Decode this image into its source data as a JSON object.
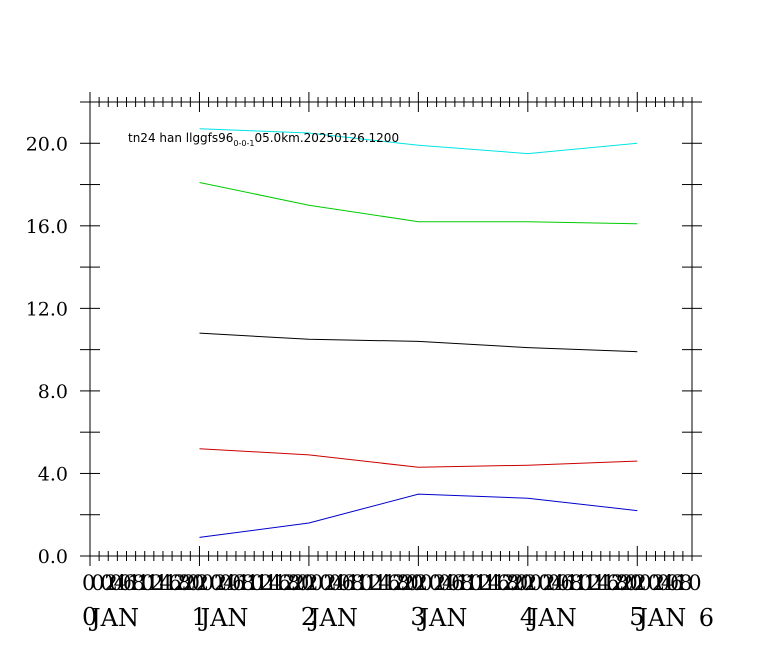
{
  "chart_data": {
    "type": "line",
    "title": "",
    "xlabel": "",
    "ylabel": "",
    "annotation": {
      "prefix": "tn24 han llggfs96",
      "subscript": "0-0-1",
      "suffix": "05.0km.20250126.1200"
    },
    "x": [
      1,
      2,
      3,
      4,
      5
    ],
    "xlim": [
      0,
      5.5
    ],
    "ylim": [
      0,
      22
    ],
    "yticks": [
      0,
      4,
      8,
      12,
      16,
      20
    ],
    "ytick_labels": [
      "0.0",
      "4.0",
      "8.0",
      "12.0",
      "16.0",
      "20.0"
    ],
    "xticks": [
      {
        "x": 0,
        "top": "0",
        "bottom": "JAN"
      },
      {
        "x": 1,
        "top": "1",
        "bottom": "JAN"
      },
      {
        "x": 2,
        "top": "2",
        "bottom": "JAN"
      },
      {
        "x": 3,
        "top": "3",
        "bottom": "JAN"
      },
      {
        "x": 4,
        "top": "4",
        "bottom": "JAN"
      },
      {
        "x": 5,
        "top": "5",
        "bottom": "JAN"
      },
      {
        "x": 5.5,
        "top": "",
        "bottom": "6"
      }
    ],
    "xsub_labels": [
      "0",
      "02",
      "04",
      "06",
      "08",
      "10",
      "12",
      "14",
      "16",
      "18",
      "20",
      "22"
    ],
    "grid": false,
    "series": [
      {
        "color": "#00e5e5",
        "values": [
          20.7,
          20.5,
          19.9,
          19.5,
          20.0
        ]
      },
      {
        "color": "#00cc00",
        "values": [
          18.1,
          17.0,
          16.2,
          16.2,
          16.1
        ]
      },
      {
        "color": "#000000",
        "values": [
          10.8,
          10.5,
          10.4,
          10.1,
          9.9
        ]
      },
      {
        "color": "#cc0000",
        "values": [
          5.2,
          4.9,
          4.3,
          4.4,
          4.6
        ]
      },
      {
        "color": "#0000cc",
        "values": [
          0.9,
          1.6,
          3.0,
          2.8,
          2.2
        ]
      }
    ]
  }
}
